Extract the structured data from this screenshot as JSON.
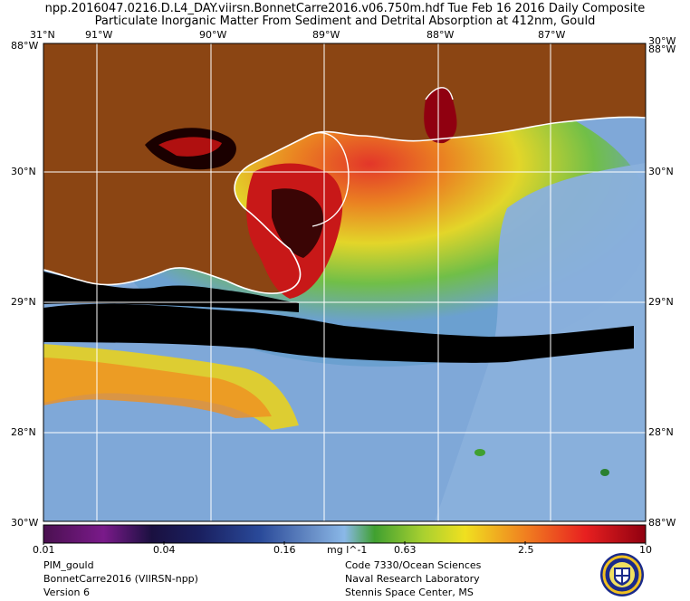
{
  "header": {
    "line1": "npp.2016047.0216.D.L4_DAY.viirsn.BonnetCarre2016.v06.750m.hdf     Tue Feb 16 2016 Daily Composite",
    "line2": "Particulate Inorganic Matter From Sediment and Detrital Absorption at 412nm, Gould"
  },
  "map": {
    "lon_labels": [
      "91°W",
      "90°W",
      "89°W",
      "88°W",
      "87°W"
    ],
    "lat_labels": [
      "30°N",
      "29°N",
      "28°N"
    ],
    "corner_top_left_lat": "31°N",
    "corner_top_left_lat_side": "88°W",
    "corner_top_right_lon": "88°W",
    "corner_top_right_lat": "30°W",
    "corner_bottom_left": "30°W",
    "corner_bottom_right": "88°W",
    "colors": {
      "land": "#8b4513",
      "no_data": "#000000",
      "coast": "#ffffff",
      "grid": "#ffffff",
      "water_low": "#7fa8d8",
      "mid_green": "#4caf35",
      "yellow": "#e8e020",
      "orange": "#f07818",
      "red": "#e81818",
      "dark_red": "#8b0000"
    }
  },
  "colorbar": {
    "ticks": [
      "0.01",
      "0.04",
      "0.16",
      "mg l^-1",
      "0.63",
      "2.5",
      "10"
    ],
    "stops": [
      "#4a1050",
      "#7a1a8a",
      "#2a1a7a",
      "#1a2060",
      "#2a4a9a",
      "#6a90c8",
      "#8ab8e8",
      "#5ab040",
      "#a8d030",
      "#f0e020",
      "#f08020",
      "#e82020",
      "#900010"
    ]
  },
  "footer": {
    "left": [
      "PIM_gould",
      "BonnetCarre2016 (VIIRSN-npp)",
      "Version 6"
    ],
    "right": [
      "Code 7330/Ocean Sciences",
      "Naval Research Laboratory",
      "Stennis Space Center, MS"
    ]
  }
}
